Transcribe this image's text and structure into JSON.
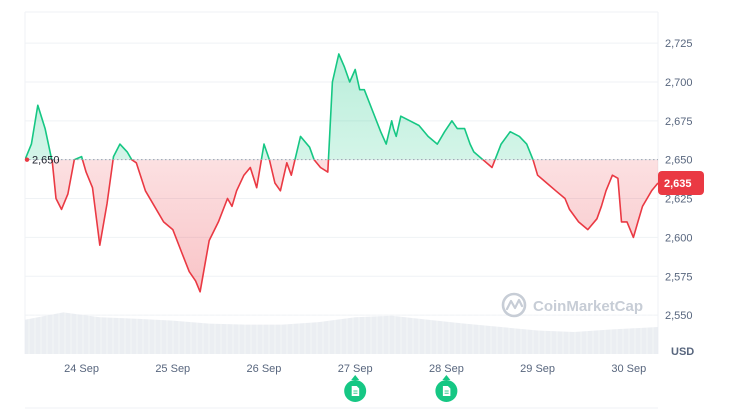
{
  "chart_data": {
    "type": "area",
    "title": "",
    "xlabel": "",
    "ylabel": "",
    "y_unit": "USD",
    "ylim": [
      2525,
      2745
    ],
    "y_ticks": [
      2725,
      2700,
      2675,
      2650,
      2625,
      2600,
      2575,
      2550
    ],
    "y_tick_labels": [
      "2,725",
      "2,700",
      "2,675",
      "2,650",
      "2,625",
      "2,600",
      "2,575",
      "2,550"
    ],
    "x_ticks": [
      "24 Sep",
      "25 Sep",
      "26 Sep",
      "27 Sep",
      "28 Sep",
      "29 Sep",
      "30 Sep"
    ],
    "x_tick_positions": [
      1,
      2,
      3,
      4,
      5,
      6,
      7
    ],
    "xlim": [
      0.38,
      7.32
    ],
    "reference_value": 2650,
    "reference_label": "2,650",
    "current_price": 2635,
    "current_price_label": "2,635",
    "colors": {
      "above": "#16c784",
      "below": "#ea3943",
      "grid": "#eff2f5",
      "volume": "#e8ebf0",
      "event_marker": "#16c784"
    },
    "grid": true,
    "event_markers": [
      {
        "x": 4.0,
        "icon": "document-icon"
      },
      {
        "x": 5.0,
        "icon": "document-icon"
      }
    ],
    "series": [
      {
        "x": [
          0.38,
          0.45,
          0.52,
          0.6,
          0.68,
          0.72,
          0.78,
          0.85,
          0.92,
          1.0,
          1.05,
          1.12,
          1.2,
          1.28,
          1.35,
          1.42,
          1.5,
          1.55,
          1.6,
          1.7,
          1.8,
          1.9,
          2.0,
          2.1,
          2.18,
          2.25,
          2.3,
          2.36,
          2.4,
          2.5,
          2.6,
          2.65,
          2.7,
          2.78,
          2.85,
          2.92,
          3.0,
          3.06,
          3.12,
          3.18,
          3.25,
          3.3,
          3.4,
          3.5,
          3.55,
          3.62,
          3.7,
          3.75,
          3.82,
          3.88,
          3.94,
          4.0,
          4.05,
          4.1,
          4.2,
          4.28,
          4.34,
          4.4,
          4.42,
          4.45,
          4.5,
          4.6,
          4.7,
          4.8,
          4.9,
          4.98,
          5.06,
          5.12,
          5.2,
          5.26,
          5.3,
          5.4,
          5.5,
          5.6,
          5.7,
          5.8,
          5.88,
          5.95,
          6.0,
          6.1,
          6.2,
          6.3,
          6.35,
          6.45,
          6.55,
          6.65,
          6.7,
          6.75,
          6.82,
          6.88,
          6.92,
          6.98,
          7.05,
          7.1,
          7.15,
          7.2,
          7.25,
          7.32
        ],
        "values": [
          2650,
          2660,
          2685,
          2670,
          2648,
          2625,
          2618,
          2628,
          2650,
          2652,
          2642,
          2632,
          2595,
          2622,
          2652,
          2660,
          2655,
          2650,
          2648,
          2630,
          2620,
          2610,
          2605,
          2590,
          2578,
          2572,
          2565,
          2585,
          2598,
          2610,
          2625,
          2620,
          2630,
          2640,
          2645,
          2632,
          2660,
          2650,
          2635,
          2630,
          2648,
          2640,
          2665,
          2658,
          2650,
          2645,
          2642,
          2700,
          2718,
          2710,
          2700,
          2708,
          2695,
          2695,
          2680,
          2668,
          2660,
          2675,
          2670,
          2665,
          2678,
          2675,
          2672,
          2665,
          2660,
          2668,
          2675,
          2670,
          2670,
          2660,
          2655,
          2650,
          2645,
          2660,
          2668,
          2665,
          2660,
          2650,
          2640,
          2635,
          2630,
          2625,
          2618,
          2610,
          2605,
          2612,
          2620,
          2630,
          2640,
          2638,
          2610,
          2610,
          2600,
          2610,
          2620,
          2625,
          2630,
          2635
        ]
      }
    ],
    "volume": {
      "x": [
        0.38,
        0.8,
        1.2,
        1.6,
        2.0,
        2.4,
        2.8,
        3.2,
        3.6,
        4.0,
        4.4,
        4.8,
        5.2,
        5.6,
        6.0,
        6.4,
        6.8,
        7.32
      ],
      "values": [
        0.7,
        0.85,
        0.75,
        0.72,
        0.68,
        0.62,
        0.6,
        0.6,
        0.65,
        0.75,
        0.78,
        0.7,
        0.62,
        0.55,
        0.48,
        0.45,
        0.5,
        0.55
      ]
    }
  },
  "watermark": {
    "text": "CoinMarketCap"
  }
}
